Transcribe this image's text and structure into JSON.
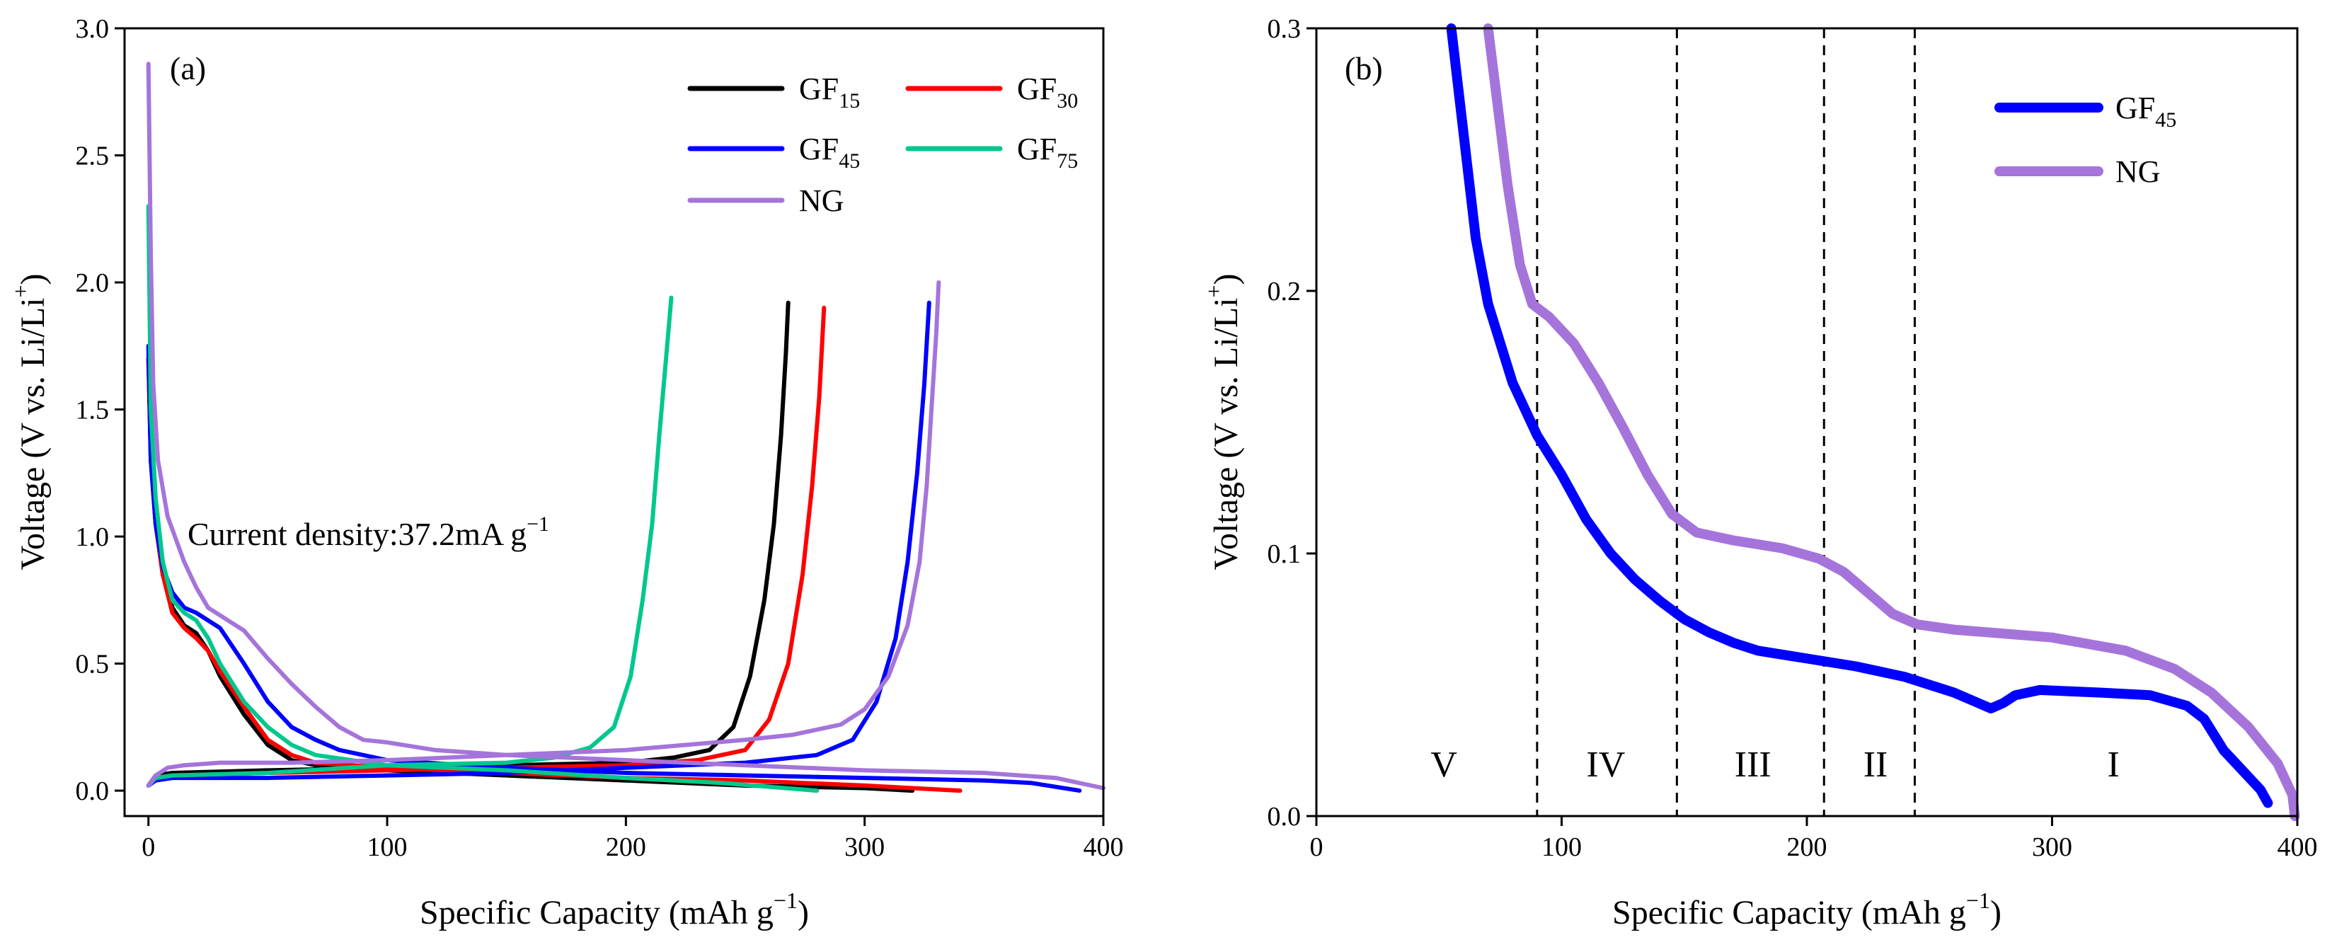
{
  "chart_data": [
    {
      "panel_label": "(a)",
      "type": "line",
      "xlabel": "Specific Capacity (mAh g",
      "xlabel_sup": "−1",
      "xlabel_close": ")",
      "ylabel": "Voltage (V vs. Li/Li",
      "ylabel_sup": "+",
      "ylabel_close": ")",
      "xlim": [
        -10,
        400
      ],
      "ylim": [
        -0.1,
        3.0
      ],
      "xticks": [
        0,
        100,
        200,
        300,
        400
      ],
      "xtick_labels": [
        "0",
        "100",
        "200",
        "300",
        "400"
      ],
      "yticks": [
        0.0,
        0.5,
        1.0,
        1.5,
        2.0,
        2.5,
        3.0
      ],
      "ytick_labels": [
        "0.0",
        "0.5",
        "1.0",
        "1.5",
        "2.0",
        "2.5",
        "3.0"
      ],
      "annotation": "Current density:37.2mA g",
      "annotation_sup": "−1",
      "legend_position": "top-right",
      "series": [
        {
          "name": "GF",
          "sub": "15",
          "color": "#000000",
          "discharge": [
            [
              0,
              1.7
            ],
            [
              1,
              1.3
            ],
            [
              3,
              1.05
            ],
            [
              6,
              0.85
            ],
            [
              10,
              0.72
            ],
            [
              15,
              0.65
            ],
            [
              20,
              0.62
            ],
            [
              25,
              0.55
            ],
            [
              30,
              0.45
            ],
            [
              40,
              0.3
            ],
            [
              50,
              0.18
            ],
            [
              60,
              0.12
            ],
            [
              70,
              0.1
            ],
            [
              100,
              0.08
            ],
            [
              150,
              0.06
            ],
            [
              200,
              0.04
            ],
            [
              250,
              0.02
            ],
            [
              300,
              0.01
            ],
            [
              320,
              0.0
            ]
          ],
          "charge": [
            [
              0,
              0.02
            ],
            [
              3,
              0.06
            ],
            [
              10,
              0.07
            ],
            [
              50,
              0.08
            ],
            [
              100,
              0.09
            ],
            [
              150,
              0.1
            ],
            [
              200,
              0.11
            ],
            [
              220,
              0.13
            ],
            [
              235,
              0.16
            ],
            [
              245,
              0.25
            ],
            [
              252,
              0.45
            ],
            [
              258,
              0.75
            ],
            [
              262,
              1.05
            ],
            [
              265,
              1.4
            ],
            [
              267,
              1.72
            ],
            [
              268,
              1.92
            ]
          ]
        },
        {
          "name": "GF",
          "sub": "30",
          "color": "#ff0000",
          "discharge": [
            [
              0,
              1.7
            ],
            [
              1,
              1.35
            ],
            [
              3,
              1.05
            ],
            [
              6,
              0.85
            ],
            [
              10,
              0.7
            ],
            [
              15,
              0.64
            ],
            [
              20,
              0.6
            ],
            [
              25,
              0.55
            ],
            [
              30,
              0.47
            ],
            [
              40,
              0.33
            ],
            [
              50,
              0.2
            ],
            [
              60,
              0.14
            ],
            [
              70,
              0.11
            ],
            [
              100,
              0.09
            ],
            [
              150,
              0.07
            ],
            [
              200,
              0.05
            ],
            [
              250,
              0.04
            ],
            [
              300,
              0.02
            ],
            [
              340,
              0.0
            ]
          ],
          "charge": [
            [
              0,
              0.02
            ],
            [
              3,
              0.05
            ],
            [
              10,
              0.06
            ],
            [
              50,
              0.07
            ],
            [
              100,
              0.08
            ],
            [
              150,
              0.09
            ],
            [
              200,
              0.1
            ],
            [
              230,
              0.12
            ],
            [
              250,
              0.16
            ],
            [
              260,
              0.28
            ],
            [
              268,
              0.5
            ],
            [
              274,
              0.85
            ],
            [
              278,
              1.2
            ],
            [
              281,
              1.55
            ],
            [
              283,
              1.9
            ]
          ]
        },
        {
          "name": "GF",
          "sub": "45",
          "color": "#0000ff",
          "discharge": [
            [
              0,
              1.75
            ],
            [
              1,
              1.3
            ],
            [
              3,
              1.05
            ],
            [
              6,
              0.88
            ],
            [
              10,
              0.78
            ],
            [
              15,
              0.72
            ],
            [
              20,
              0.7
            ],
            [
              30,
              0.64
            ],
            [
              40,
              0.5
            ],
            [
              50,
              0.35
            ],
            [
              60,
              0.25
            ],
            [
              70,
              0.2
            ],
            [
              80,
              0.16
            ],
            [
              100,
              0.12
            ],
            [
              150,
              0.09
            ],
            [
              200,
              0.07
            ],
            [
              250,
              0.06
            ],
            [
              300,
              0.05
            ],
            [
              350,
              0.04
            ],
            [
              370,
              0.03
            ],
            [
              390,
              0.0
            ]
          ],
          "charge": [
            [
              0,
              0.02
            ],
            [
              3,
              0.04
            ],
            [
              10,
              0.05
            ],
            [
              50,
              0.05
            ],
            [
              100,
              0.06
            ],
            [
              150,
              0.07
            ],
            [
              200,
              0.09
            ],
            [
              250,
              0.11
            ],
            [
              280,
              0.14
            ],
            [
              295,
              0.2
            ],
            [
              305,
              0.35
            ],
            [
              313,
              0.6
            ],
            [
              318,
              0.9
            ],
            [
              322,
              1.25
            ],
            [
              325,
              1.6
            ],
            [
              327,
              1.92
            ]
          ]
        },
        {
          "name": "GF",
          "sub": "75",
          "color": "#00c88c",
          "discharge": [
            [
              0,
              2.3
            ],
            [
              1,
              1.5
            ],
            [
              3,
              1.15
            ],
            [
              6,
              0.9
            ],
            [
              10,
              0.75
            ],
            [
              15,
              0.7
            ],
            [
              20,
              0.67
            ],
            [
              25,
              0.6
            ],
            [
              30,
              0.5
            ],
            [
              40,
              0.35
            ],
            [
              50,
              0.25
            ],
            [
              60,
              0.18
            ],
            [
              70,
              0.14
            ],
            [
              100,
              0.1
            ],
            [
              150,
              0.08
            ],
            [
              200,
              0.05
            ],
            [
              240,
              0.03
            ],
            [
              280,
              0.0
            ]
          ],
          "charge": [
            [
              0,
              0.02
            ],
            [
              3,
              0.05
            ],
            [
              10,
              0.06
            ],
            [
              50,
              0.07
            ],
            [
              100,
              0.1
            ],
            [
              150,
              0.11
            ],
            [
              170,
              0.13
            ],
            [
              185,
              0.17
            ],
            [
              195,
              0.25
            ],
            [
              202,
              0.45
            ],
            [
              207,
              0.75
            ],
            [
              211,
              1.05
            ],
            [
              214,
              1.4
            ],
            [
              217,
              1.72
            ],
            [
              219,
              1.94
            ]
          ]
        },
        {
          "name": "NG",
          "sub": "",
          "color": "#a574db",
          "discharge": [
            [
              0,
              2.86
            ],
            [
              1,
              2.1
            ],
            [
              2,
              1.6
            ],
            [
              4,
              1.3
            ],
            [
              8,
              1.08
            ],
            [
              15,
              0.9
            ],
            [
              20,
              0.8
            ],
            [
              25,
              0.72
            ],
            [
              30,
              0.69
            ],
            [
              40,
              0.63
            ],
            [
              50,
              0.52
            ],
            [
              60,
              0.42
            ],
            [
              70,
              0.33
            ],
            [
              80,
              0.25
            ],
            [
              90,
              0.2
            ],
            [
              100,
              0.19
            ],
            [
              120,
              0.16
            ],
            [
              150,
              0.14
            ],
            [
              200,
              0.12
            ],
            [
              250,
              0.1
            ],
            [
              300,
              0.08
            ],
            [
              350,
              0.07
            ],
            [
              380,
              0.05
            ],
            [
              400,
              0.01
            ]
          ],
          "charge": [
            [
              0,
              0.02
            ],
            [
              3,
              0.06
            ],
            [
              8,
              0.09
            ],
            [
              15,
              0.1
            ],
            [
              30,
              0.11
            ],
            [
              60,
              0.11
            ],
            [
              100,
              0.12
            ],
            [
              150,
              0.14
            ],
            [
              200,
              0.16
            ],
            [
              250,
              0.2
            ],
            [
              270,
              0.22
            ],
            [
              290,
              0.26
            ],
            [
              300,
              0.32
            ],
            [
              310,
              0.45
            ],
            [
              318,
              0.65
            ],
            [
              323,
              0.9
            ],
            [
              326,
              1.2
            ],
            [
              328,
              1.5
            ],
            [
              330,
              1.8
            ],
            [
              331,
              2.0
            ]
          ]
        }
      ]
    },
    {
      "panel_label": "(b)",
      "type": "line",
      "xlabel": "Specific Capacity (mAh g",
      "xlabel_sup": "−1",
      "xlabel_close": ")",
      "ylabel": "Voltage (V vs. Li/Li",
      "ylabel_sup": "+",
      "ylabel_close": ")",
      "xlim": [
        0,
        400
      ],
      "ylim": [
        0.0,
        0.3
      ],
      "xticks": [
        0,
        100,
        200,
        300,
        400
      ],
      "xtick_labels": [
        "0",
        "100",
        "200",
        "300",
        "400"
      ],
      "yticks": [
        0.0,
        0.1,
        0.2,
        0.3
      ],
      "ytick_labels": [
        "0.0",
        "0.1",
        "0.2",
        "0.3"
      ],
      "vlines": [
        90,
        147,
        207,
        244
      ],
      "regions": [
        {
          "label": "V",
          "x": 52
        },
        {
          "label": "IV",
          "x": 118
        },
        {
          "label": "III",
          "x": 178
        },
        {
          "label": "II",
          "x": 228
        },
        {
          "label": "I",
          "x": 325
        }
      ],
      "region_label_y": 0.02,
      "legend_position": "top-right",
      "series": [
        {
          "name": "GF",
          "sub": "45",
          "color": "#0000ff",
          "points": [
            [
              55,
              0.3
            ],
            [
              60,
              0.26
            ],
            [
              65,
              0.22
            ],
            [
              70,
              0.195
            ],
            [
              80,
              0.165
            ],
            [
              90,
              0.145
            ],
            [
              100,
              0.13
            ],
            [
              110,
              0.113
            ],
            [
              120,
              0.1
            ],
            [
              130,
              0.09
            ],
            [
              140,
              0.082
            ],
            [
              150,
              0.075
            ],
            [
              160,
              0.07
            ],
            [
              170,
              0.066
            ],
            [
              180,
              0.063
            ],
            [
              200,
              0.06
            ],
            [
              220,
              0.057
            ],
            [
              240,
              0.053
            ],
            [
              260,
              0.047
            ],
            [
              270,
              0.043
            ],
            [
              275,
              0.041
            ],
            [
              280,
              0.043
            ],
            [
              285,
              0.046
            ],
            [
              295,
              0.048
            ],
            [
              320,
              0.047
            ],
            [
              340,
              0.046
            ],
            [
              355,
              0.042
            ],
            [
              362,
              0.037
            ],
            [
              370,
              0.025
            ],
            [
              380,
              0.015
            ],
            [
              385,
              0.01
            ],
            [
              388,
              0.005
            ]
          ]
        },
        {
          "name": "NG",
          "sub": "",
          "color": "#a574db",
          "points": [
            [
              70,
              0.3
            ],
            [
              74,
              0.27
            ],
            [
              78,
              0.24
            ],
            [
              83,
              0.21
            ],
            [
              88,
              0.195
            ],
            [
              95,
              0.19
            ],
            [
              105,
              0.18
            ],
            [
              115,
              0.165
            ],
            [
              125,
              0.148
            ],
            [
              135,
              0.13
            ],
            [
              145,
              0.115
            ],
            [
              155,
              0.108
            ],
            [
              170,
              0.105
            ],
            [
              190,
              0.102
            ],
            [
              205,
              0.098
            ],
            [
              215,
              0.093
            ],
            [
              225,
              0.085
            ],
            [
              235,
              0.077
            ],
            [
              245,
              0.073
            ],
            [
              260,
              0.071
            ],
            [
              300,
              0.068
            ],
            [
              330,
              0.063
            ],
            [
              350,
              0.056
            ],
            [
              365,
              0.047
            ],
            [
              380,
              0.034
            ],
            [
              392,
              0.02
            ],
            [
              398,
              0.008
            ],
            [
              399,
              0.0
            ]
          ]
        }
      ]
    }
  ]
}
